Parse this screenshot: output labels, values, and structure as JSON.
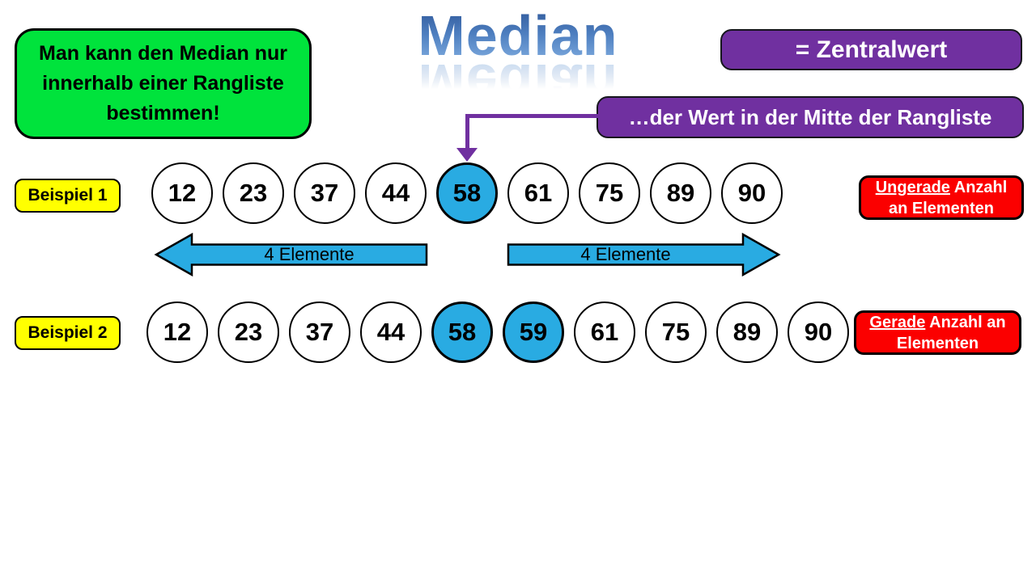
{
  "title": {
    "text": "Median"
  },
  "note_box": {
    "text": "Man kann den Median nur innerhalb einer Rangliste bestimmen!"
  },
  "zentralwert_box": {
    "text": "= Zentralwert"
  },
  "definition_box": {
    "text": "…der Wert in der Mitte der Rangliste"
  },
  "arrows": {
    "left_label": "4 Elemente",
    "right_label": "4 Elemente"
  },
  "examples": [
    {
      "label": "Beispiel 1",
      "values": [
        "12",
        "23",
        "37",
        "44",
        "58",
        "61",
        "75",
        "89",
        "90"
      ],
      "highlighted": [
        "58"
      ],
      "badge_underlined": "Ungerade",
      "badge_rest": " Anzahl an Elementen"
    },
    {
      "label": "Beispiel 2",
      "values": [
        "12",
        "23",
        "37",
        "44",
        "58",
        "59",
        "61",
        "75",
        "89",
        "90"
      ],
      "highlighted": [
        "58",
        "59"
      ],
      "badge_underlined": "Gerade",
      "badge_rest": " Anzahl an Elementen"
    }
  ],
  "colors": {
    "green": "#00E33C",
    "purple": "#7030A0",
    "yellow": "#FFFF00",
    "red": "#FB0000",
    "blue": "#29ABE2",
    "title-blue-top": "#2D5596",
    "title-blue-bottom": "#86B2E3"
  }
}
